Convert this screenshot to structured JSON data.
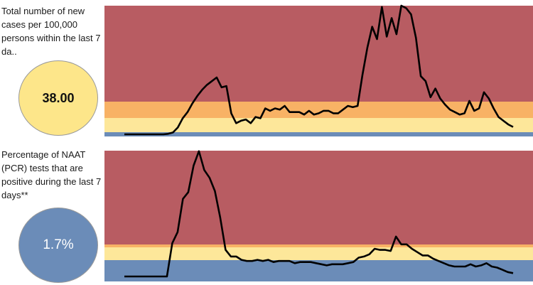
{
  "panels": [
    {
      "label": "Total number of new cases per 100,000 persons within the last 7 da..",
      "value": "38.00",
      "circle_color": "#fde68a"
    },
    {
      "label": "Percentage of NAAT (PCR) tests that are positive during the last 7 days**",
      "value": "1.7%",
      "circle_color": "#6b8cb8"
    }
  ],
  "colors": {
    "red": "#b85c62",
    "orange": "#f8b265",
    "yellow": "#fde79a",
    "blue": "#6b8cb8",
    "line": "#000000"
  },
  "chart_data": [
    {
      "type": "line",
      "series": [
        {
          "values": [
            0.0,
            0.0,
            0.0,
            0.0,
            0.0,
            0.0,
            0.0,
            0.0,
            0.0,
            0.4,
            1.5,
            5.5,
            13,
            18,
            25,
            31,
            36,
            40,
            43,
            46,
            38,
            39,
            17,
            9,
            11,
            12,
            9,
            14,
            13,
            21,
            19,
            21,
            20,
            23,
            18,
            18,
            18,
            16,
            19,
            16,
            17,
            19,
            19,
            17,
            17,
            20,
            23,
            22,
            23,
            48,
            70,
            87,
            77,
            103,
            79,
            94,
            81,
            104,
            102,
            97,
            78,
            47,
            43,
            30,
            37,
            29,
            24,
            20,
            18,
            16,
            17,
            27,
            19,
            21,
            34,
            29,
            21,
            14,
            11,
            8,
            6
          ]
        }
      ],
      "bands": [
        "blue",
        "yellow",
        "orange",
        "red"
      ]
    },
    {
      "type": "line",
      "series": [
        {
          "values": [
            0.0,
            0.0,
            0.0,
            0.0,
            0.0,
            0.0,
            0.0,
            0.0,
            0.0,
            3.0,
            4.0,
            7.0,
            7.6,
            10.0,
            11.3,
            9.6,
            8.9,
            7.7,
            5.3,
            2.4,
            1.8,
            1.8,
            1.5,
            1.4,
            1.4,
            1.5,
            1.4,
            1.5,
            1.3,
            1.4,
            1.4,
            1.4,
            1.2,
            1.3,
            1.3,
            1.3,
            1.2,
            1.1,
            1.0,
            1.1,
            1.1,
            1.1,
            1.2,
            1.3,
            1.7,
            1.8,
            2.0,
            2.5,
            2.4,
            2.4,
            2.3,
            3.6,
            2.9,
            2.9,
            2.5,
            2.2,
            1.9,
            1.9,
            1.6,
            1.4,
            1.2,
            1.0,
            0.9,
            0.9,
            0.9,
            1.1,
            0.9,
            1.0,
            1.2,
            0.9,
            0.8,
            0.6,
            0.4,
            0.3
          ]
        }
      ],
      "bands": [
        "blue",
        "yellow",
        "orange",
        "red"
      ]
    }
  ]
}
